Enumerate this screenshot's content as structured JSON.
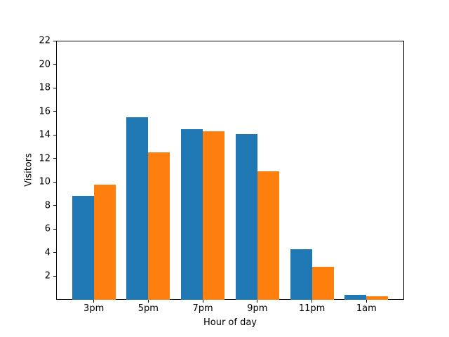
{
  "chart_data": {
    "type": "bar",
    "title": "",
    "xlabel": "Hour of day",
    "ylabel": "Visitors",
    "categories": [
      "3pm",
      "5pm",
      "7pm",
      "9pm",
      "11pm",
      "1am"
    ],
    "series": [
      {
        "name": "blue",
        "color": "#1f77b4",
        "values": [
          8.8,
          15.5,
          14.5,
          14.1,
          4.3,
          0.4
        ]
      },
      {
        "name": "orange",
        "color": "#ff7f0e",
        "values": [
          9.8,
          12.5,
          14.3,
          10.9,
          2.8,
          0.3
        ]
      }
    ],
    "ylim": [
      0,
      22
    ],
    "yticks": [
      2,
      4,
      6,
      8,
      10,
      12,
      14,
      16,
      18,
      20,
      22
    ],
    "xlim": [
      -0.69,
      5.69
    ],
    "bar_width": 0.4,
    "grid": false,
    "legend": false,
    "background": "#ffffff",
    "frame_color": "#000000"
  }
}
